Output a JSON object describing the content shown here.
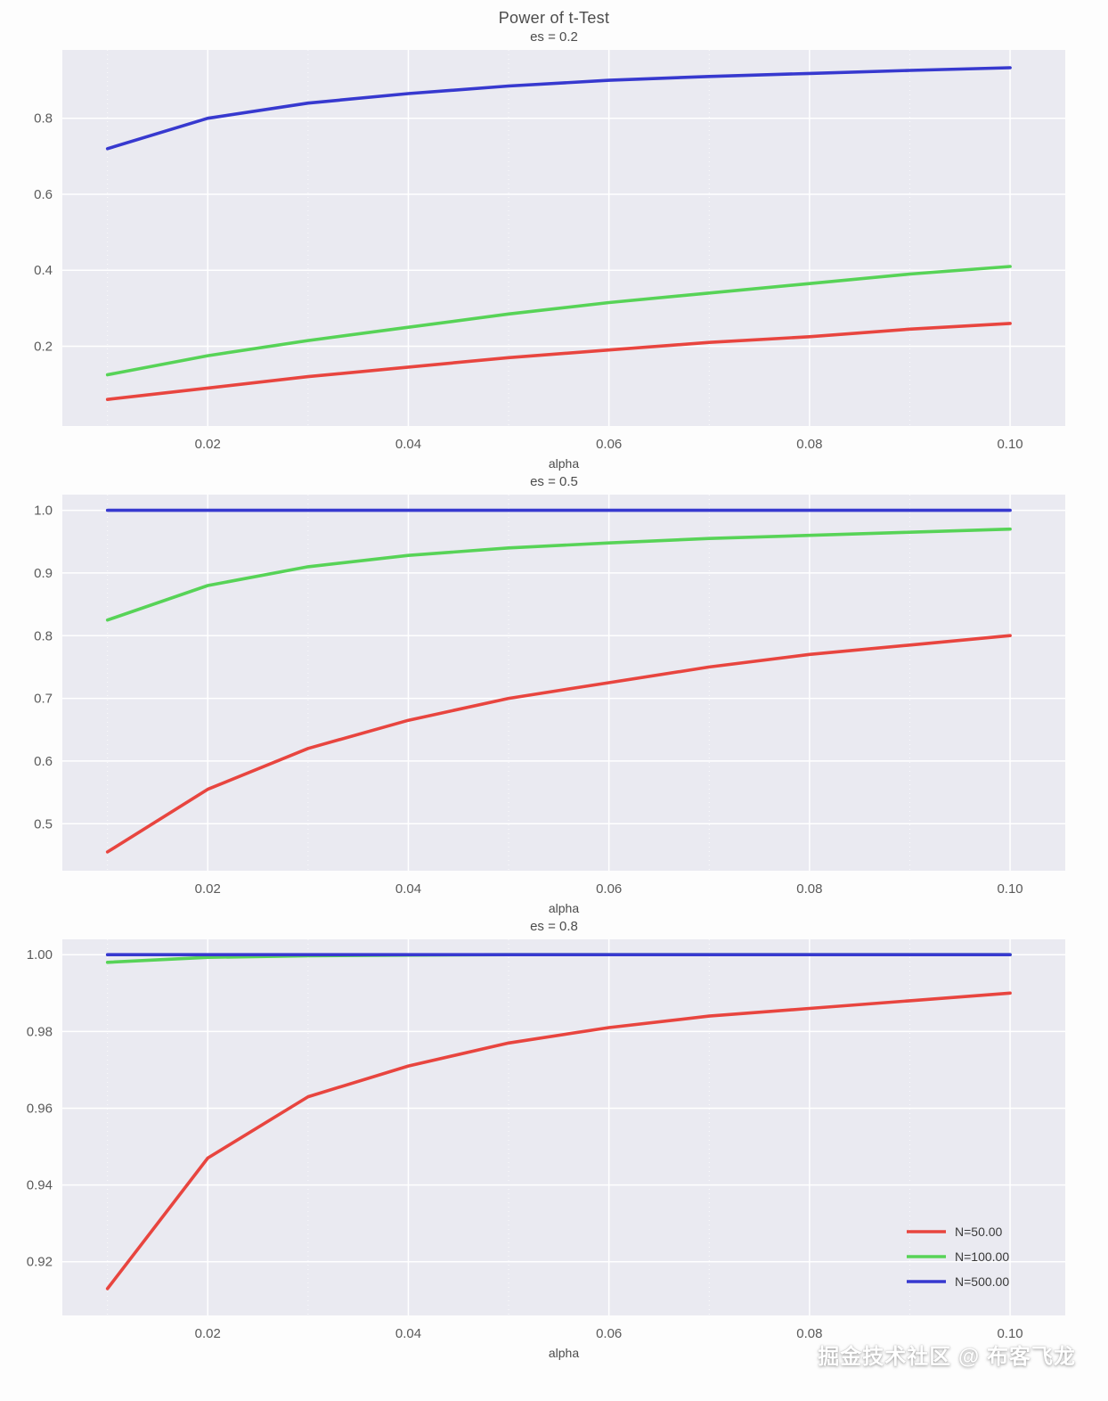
{
  "figure_title": "Power of t-Test",
  "watermark": "掘金技术社区 @ 布客飞龙",
  "colors": {
    "plot_bg": "#eaeaf1",
    "grid": "#ffffff",
    "tick_text": "#5a5a5a",
    "label_text": "#4c4c4c",
    "legend_text": "#3a3a3a"
  },
  "chart_data": [
    {
      "type": "line",
      "title": "es = 0.2",
      "xlabel": "alpha",
      "x": [
        0.01,
        0.02,
        0.03,
        0.04,
        0.05,
        0.06,
        0.07,
        0.08,
        0.09,
        0.1
      ],
      "xlim": [
        0.0055,
        0.1055
      ],
      "ylim": [
        -0.01,
        0.98
      ],
      "xticks": [
        0.02,
        0.04,
        0.06,
        0.08,
        0.1
      ],
      "xtick_labels": [
        "0.02",
        "0.04",
        "0.06",
        "0.08",
        "0.10"
      ],
      "xticks_minor": [
        0.01,
        0.03,
        0.05,
        0.07,
        0.09
      ],
      "yticks": [
        0.2,
        0.4,
        0.6,
        0.8
      ],
      "ytick_labels": [
        "0.2",
        "0.4",
        "0.6",
        "0.8"
      ],
      "legend": false,
      "series": [
        {
          "name": "N=50.00",
          "color": "#e8453f",
          "values": [
            0.06,
            0.09,
            0.12,
            0.145,
            0.17,
            0.19,
            0.21,
            0.225,
            0.245,
            0.26
          ]
        },
        {
          "name": "N=100.00",
          "color": "#57d357",
          "values": [
            0.125,
            0.175,
            0.215,
            0.25,
            0.285,
            0.315,
            0.34,
            0.365,
            0.39,
            0.41
          ]
        },
        {
          "name": "N=500.00",
          "color": "#3739cf",
          "values": [
            0.72,
            0.8,
            0.84,
            0.865,
            0.885,
            0.9,
            0.91,
            0.918,
            0.926,
            0.933
          ]
        }
      ]
    },
    {
      "type": "line",
      "title": "es = 0.5",
      "xlabel": "alpha",
      "x": [
        0.01,
        0.02,
        0.03,
        0.04,
        0.05,
        0.06,
        0.07,
        0.08,
        0.09,
        0.1
      ],
      "xlim": [
        0.0055,
        0.1055
      ],
      "ylim": [
        0.425,
        1.025
      ],
      "xticks": [
        0.02,
        0.04,
        0.06,
        0.08,
        0.1
      ],
      "xtick_labels": [
        "0.02",
        "0.04",
        "0.06",
        "0.08",
        "0.10"
      ],
      "xticks_minor": [
        0.01,
        0.03,
        0.05,
        0.07,
        0.09
      ],
      "yticks": [
        0.5,
        0.6,
        0.7,
        0.8,
        0.9,
        1.0
      ],
      "ytick_labels": [
        "0.5",
        "0.6",
        "0.7",
        "0.8",
        "0.9",
        "1.0"
      ],
      "legend": false,
      "series": [
        {
          "name": "N=50.00",
          "color": "#e8453f",
          "values": [
            0.455,
            0.555,
            0.62,
            0.665,
            0.7,
            0.725,
            0.75,
            0.77,
            0.785,
            0.8
          ]
        },
        {
          "name": "N=100.00",
          "color": "#57d357",
          "values": [
            0.825,
            0.88,
            0.91,
            0.928,
            0.94,
            0.948,
            0.955,
            0.96,
            0.965,
            0.97
          ]
        },
        {
          "name": "N=500.00",
          "color": "#3739cf",
          "values": [
            1.0,
            1.0,
            1.0,
            1.0,
            1.0,
            1.0,
            1.0,
            1.0,
            1.0,
            1.0
          ]
        }
      ]
    },
    {
      "type": "line",
      "title": "es = 0.8",
      "xlabel": "alpha",
      "x": [
        0.01,
        0.02,
        0.03,
        0.04,
        0.05,
        0.06,
        0.07,
        0.08,
        0.09,
        0.1
      ],
      "xlim": [
        0.0055,
        0.1055
      ],
      "ylim": [
        0.906,
        1.004
      ],
      "xticks": [
        0.02,
        0.04,
        0.06,
        0.08,
        0.1
      ],
      "xtick_labels": [
        "0.02",
        "0.04",
        "0.06",
        "0.08",
        "0.10"
      ],
      "xticks_minor": [
        0.01,
        0.03,
        0.05,
        0.07,
        0.09
      ],
      "yticks": [
        0.92,
        0.94,
        0.96,
        0.98,
        1.0
      ],
      "ytick_labels": [
        "0.92",
        "0.94",
        "0.96",
        "0.98",
        "1.00"
      ],
      "legend": true,
      "series": [
        {
          "name": "N=50.00",
          "color": "#e8453f",
          "values": [
            0.913,
            0.947,
            0.963,
            0.971,
            0.977,
            0.981,
            0.984,
            0.986,
            0.988,
            0.99
          ]
        },
        {
          "name": "N=100.00",
          "color": "#57d357",
          "values": [
            0.998,
            0.9993,
            0.9997,
            0.9999,
            1.0,
            1.0,
            1.0,
            1.0,
            1.0,
            1.0
          ]
        },
        {
          "name": "N=500.00",
          "color": "#3739cf",
          "values": [
            1.0,
            1.0,
            1.0,
            1.0,
            1.0,
            1.0,
            1.0,
            1.0,
            1.0,
            1.0
          ]
        }
      ]
    }
  ]
}
